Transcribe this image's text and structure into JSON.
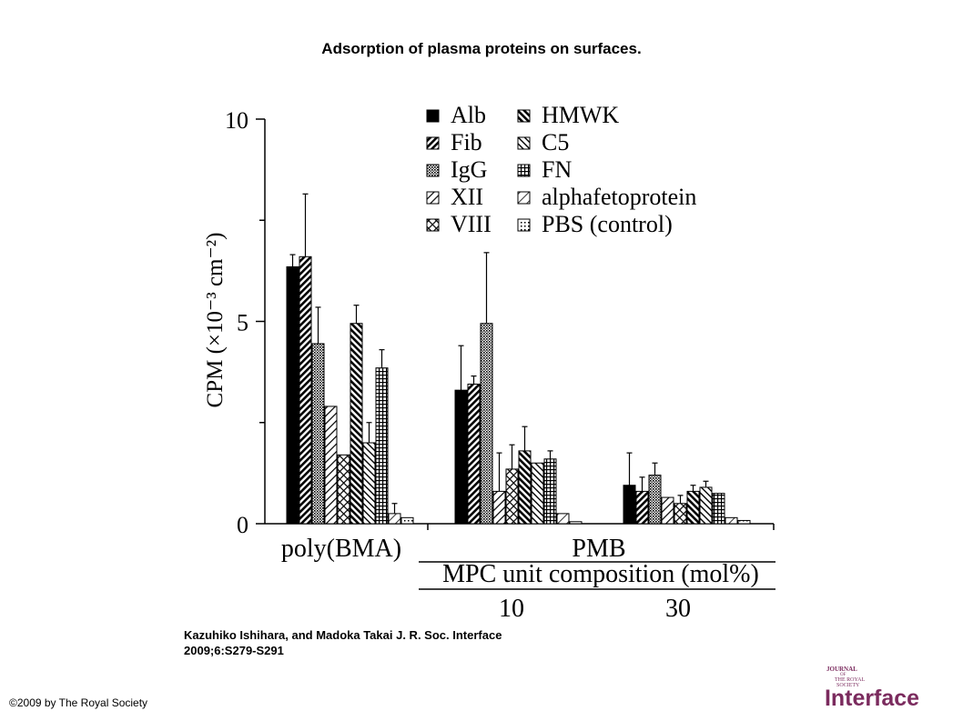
{
  "slide": {
    "title": "Adsorption of plasma proteins on surfaces.",
    "citation_line1": "Kazuhiko Ishihara, and Madoka Takai J. R. Soc. Interface",
    "citation_line2": "2009;6:S279-S291",
    "copyright": "©2009 by The Royal Society"
  },
  "logo": {
    "line1": "JOURNAL",
    "line2": "OF",
    "line3": "THE ROYAL",
    "line4": "SOCIETY",
    "word": "Interface",
    "color": "#7b2b5e"
  },
  "chart_data": {
    "type": "bar",
    "ylabel": "CPM (×10⁻³ cm⁻²)",
    "ylim": [
      0,
      10
    ],
    "yticks": [
      0,
      5,
      10
    ],
    "categories": [
      "poly(BMA)",
      "PMB 10",
      "PMB 30"
    ],
    "group_labels": [
      "poly(BMA)",
      "PMB"
    ],
    "composition_label": "MPC unit composition (mol%)",
    "composition_values": [
      "10",
      "30"
    ],
    "legend_position": "top-right",
    "series": [
      {
        "name": "Alb",
        "pattern": "solid",
        "values": [
          6.35,
          3.3,
          0.95
        ],
        "errors": [
          0.3,
          1.1,
          0.8
        ]
      },
      {
        "name": "Fib",
        "pattern": "diag-thick",
        "values": [
          6.6,
          3.45,
          0.8
        ],
        "errors": [
          1.55,
          0.2,
          0.35
        ]
      },
      {
        "name": "IgG",
        "pattern": "dense-dots",
        "values": [
          4.45,
          4.95,
          1.2
        ],
        "errors": [
          0.9,
          1.75,
          0.3
        ]
      },
      {
        "name": "XII",
        "pattern": "diag-wide",
        "values": [
          2.9,
          0.8,
          0.65
        ],
        "errors": [
          0.0,
          0.95,
          0.0
        ]
      },
      {
        "name": "VIII",
        "pattern": "crosshatch",
        "values": [
          1.7,
          1.35,
          0.5
        ],
        "errors": [
          0.0,
          0.6,
          0.2
        ]
      },
      {
        "name": "HMWK",
        "pattern": "diag-bold",
        "values": [
          4.95,
          1.8,
          0.8
        ],
        "errors": [
          0.45,
          0.6,
          0.15
        ]
      },
      {
        "name": "C5",
        "pattern": "diag-mid",
        "values": [
          2.0,
          1.5,
          0.9
        ],
        "errors": [
          0.5,
          0.0,
          0.15
        ]
      },
      {
        "name": "FN",
        "pattern": "grid",
        "values": [
          3.85,
          1.6,
          0.75
        ],
        "errors": [
          0.45,
          0.2,
          0.0
        ]
      },
      {
        "name": "alphafetoprotein",
        "pattern": "diag-thin",
        "values": [
          0.25,
          0.25,
          0.15
        ],
        "errors": [
          0.25,
          0.0,
          0.0
        ]
      },
      {
        "name": "PBS (control)",
        "pattern": "dots",
        "values": [
          0.15,
          0.05,
          0.08
        ],
        "errors": [
          0.0,
          0.0,
          0.0
        ]
      }
    ],
    "grid": false
  }
}
